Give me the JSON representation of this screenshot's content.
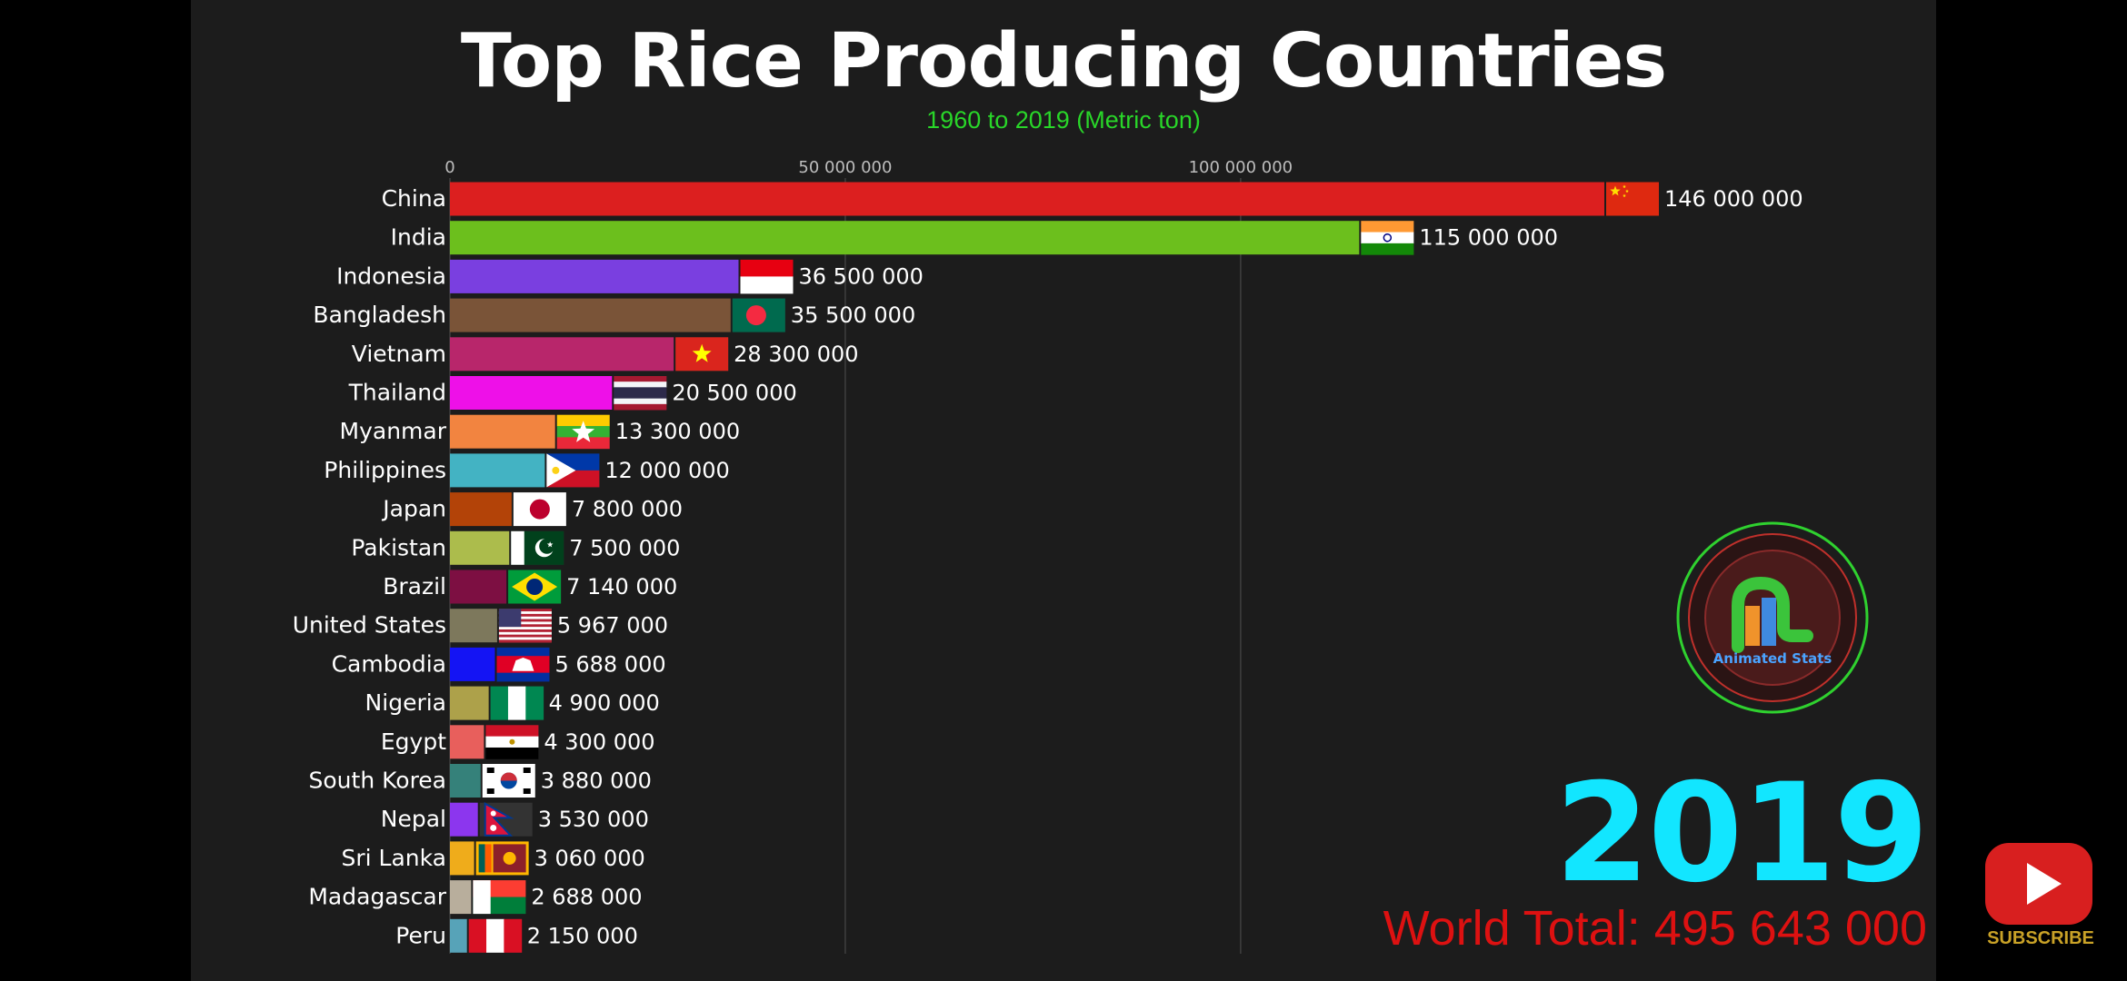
{
  "chart_data": {
    "type": "bar",
    "orientation": "horizontal",
    "title": "Top Rice Producing Countries",
    "subtitle": "1960 to 2019 (Metric ton)",
    "xlim": [
      0,
      153000000
    ],
    "ticks": [
      {
        "value": 0,
        "label": "0"
      },
      {
        "value": 50000000,
        "label": "50 000 000"
      },
      {
        "value": 100000000,
        "label": "100 000 000"
      }
    ],
    "grid": true,
    "categories": [
      "China",
      "India",
      "Indonesia",
      "Bangladesh",
      "Vietnam",
      "Thailand",
      "Myanmar",
      "Philippines",
      "Japan",
      "Pakistan",
      "Brazil",
      "United States",
      "Cambodia",
      "Nigeria",
      "Egypt",
      "South Korea",
      "Nepal",
      "Sri Lanka",
      "Madagascar",
      "Peru"
    ],
    "values": [
      146000000,
      115000000,
      36500000,
      35500000,
      28300000,
      20500000,
      13300000,
      12000000,
      7800000,
      7500000,
      7140000,
      5967000,
      5688000,
      4900000,
      4300000,
      3880000,
      3530000,
      3060000,
      2688000,
      2150000
    ],
    "value_labels": [
      "146 000 000",
      "115 000 000",
      "36 500 000",
      "35 500 000",
      "28 300 000",
      "20 500 000",
      "13 300 000",
      "12 000 000",
      "7 800 000",
      "7 500 000",
      "7 140 000",
      "5 967 000",
      "5 688 000",
      "4 900 000",
      "4 300 000",
      "3 880 000",
      "3 530 000",
      "3 060 000",
      "2 688 000",
      "2 150 000"
    ],
    "colors": [
      "#dc1f1f",
      "#6cbf1d",
      "#7a3fe0",
      "#7a5438",
      "#b8266b",
      "#ee10e8",
      "#f28440",
      "#43b3c3",
      "#b34308",
      "#acbc4c",
      "#7d0f42",
      "#7d785c",
      "#1414f4",
      "#ada14a",
      "#e85f5c",
      "#35817a",
      "#8c36ee",
      "#efac1b",
      "#b8ae9c",
      "#57a3b8"
    ],
    "flags": [
      "china-flag",
      "india-flag",
      "indonesia-flag",
      "bangladesh-flag",
      "vietnam-flag",
      "thailand-flag",
      "myanmar-flag",
      "philippines-flag",
      "japan-flag",
      "pakistan-flag",
      "brazil-flag",
      "usa-flag",
      "cambodia-flag",
      "nigeria-flag",
      "egypt-flag",
      "south-korea-flag",
      "nepal-flag",
      "sri-lanka-flag",
      "madagascar-flag",
      "peru-flag"
    ],
    "year": "2019",
    "world_total": "World Total: 495 643 000"
  },
  "logo": {
    "text": "Animated Stats"
  },
  "subscribe": {
    "label": "SUBSCRIBE"
  }
}
